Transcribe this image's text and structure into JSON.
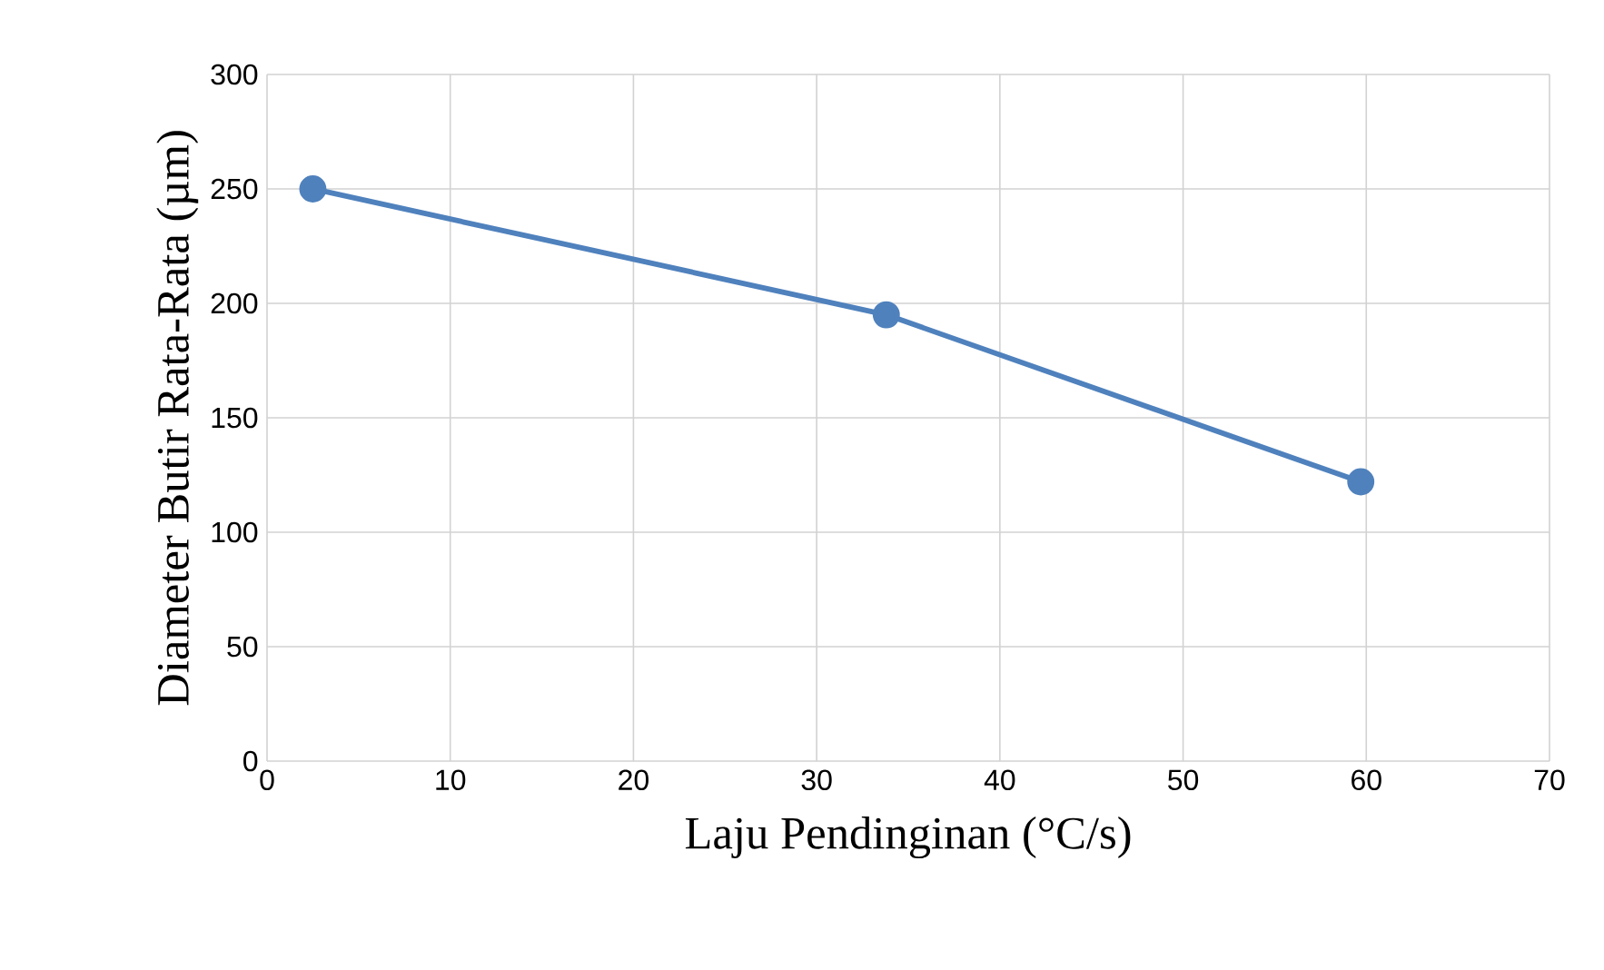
{
  "chart_data": {
    "type": "line",
    "xlabel": "Laju Pendinginan (°C/s)",
    "ylabel": "Diameter Butir Rata-Rata (µm)",
    "x": [
      2.5,
      33.8,
      59.7
    ],
    "series": [
      {
        "color": "#4f81bd",
        "values": [
          250,
          195,
          122
        ]
      }
    ],
    "xlim": [
      0,
      70
    ],
    "xticks": [
      0,
      10,
      20,
      30,
      40,
      50,
      60,
      70
    ],
    "ylim": [
      0,
      300
    ],
    "yticks": [
      0,
      50,
      100,
      150,
      200,
      250,
      300
    ],
    "grid": true,
    "marker": "circle",
    "line_style": "solid"
  }
}
